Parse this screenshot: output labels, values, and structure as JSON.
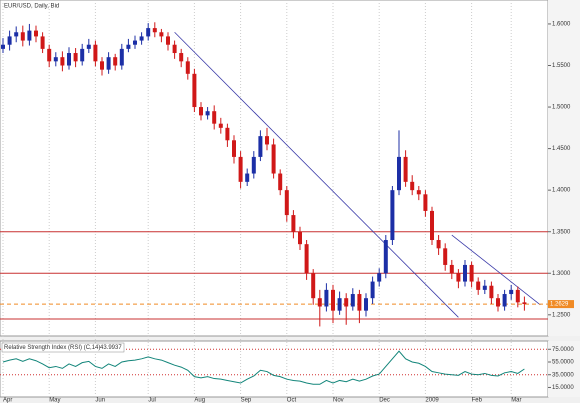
{
  "chart_data": [
    {
      "type": "candlestick",
      "title": "EUR/USD, Daily, Bid",
      "categories": [
        "Apr",
        null,
        null,
        null,
        null,
        null,
        null,
        "May",
        null,
        null,
        null,
        null,
        null,
        null,
        "Jun",
        null,
        null,
        null,
        null,
        null,
        null,
        null,
        "Jul",
        null,
        null,
        null,
        null,
        null,
        null,
        "Aug",
        null,
        null,
        null,
        null,
        null,
        null,
        "Sep",
        null,
        null,
        null,
        null,
        null,
        null,
        "Oct",
        null,
        null,
        null,
        null,
        null,
        null,
        "Nov",
        null,
        null,
        null,
        null,
        null,
        null,
        "Dec",
        null,
        null,
        null,
        null,
        null,
        null,
        "2009",
        null,
        null,
        null,
        null,
        null,
        null,
        "Feb",
        null,
        null,
        null,
        null,
        null,
        "Mar",
        null,
        null
      ],
      "open": [
        1.57,
        1.575,
        1.585,
        1.59,
        1.58,
        1.592,
        1.585,
        1.57,
        1.555,
        1.56,
        1.55,
        1.565,
        1.555,
        1.57,
        1.575,
        1.555,
        1.545,
        1.56,
        1.55,
        1.57,
        1.575,
        1.58,
        1.585,
        1.595,
        1.59,
        1.585,
        1.575,
        1.565,
        1.555,
        1.54,
        1.5,
        1.49,
        1.495,
        1.48,
        1.475,
        1.46,
        1.44,
        1.41,
        1.42,
        1.44,
        1.465,
        1.455,
        1.42,
        1.4,
        1.37,
        1.35,
        1.335,
        1.3,
        1.27,
        1.26,
        1.28,
        1.255,
        1.27,
        1.26,
        1.275,
        1.255,
        1.27,
        1.29,
        1.3,
        1.34,
        1.4,
        1.44,
        1.41,
        1.4,
        1.395,
        1.375,
        1.34,
        1.33,
        1.31,
        1.3,
        1.29,
        1.31,
        1.29,
        1.28,
        1.285,
        1.27,
        1.26,
        1.275,
        1.28,
        1.265
      ],
      "high": [
        1.583,
        1.592,
        1.597,
        1.598,
        1.6,
        1.598,
        1.59,
        1.575,
        1.566,
        1.567,
        1.572,
        1.571,
        1.576,
        1.582,
        1.58,
        1.56,
        1.566,
        1.564,
        1.576,
        1.582,
        1.586,
        1.59,
        1.601,
        1.602,
        1.594,
        1.59,
        1.58,
        1.57,
        1.56,
        1.546,
        1.506,
        1.5,
        1.502,
        1.487,
        1.48,
        1.466,
        1.447,
        1.426,
        1.447,
        1.472,
        1.475,
        1.462,
        1.425,
        1.405,
        1.376,
        1.356,
        1.34,
        1.305,
        1.28,
        1.288,
        1.286,
        1.278,
        1.276,
        1.282,
        1.28,
        1.276,
        1.296,
        1.306,
        1.346,
        1.405,
        1.472,
        1.448,
        1.418,
        1.405,
        1.4,
        1.38,
        1.346,
        1.336,
        1.316,
        1.305,
        1.316,
        1.314,
        1.295,
        1.292,
        1.29,
        1.275,
        1.28,
        1.286,
        1.284,
        1.272
      ],
      "low": [
        1.565,
        1.568,
        1.578,
        1.573,
        1.574,
        1.578,
        1.565,
        1.548,
        1.549,
        1.543,
        1.545,
        1.548,
        1.55,
        1.565,
        1.549,
        1.538,
        1.54,
        1.544,
        1.545,
        1.566,
        1.57,
        1.575,
        1.58,
        1.584,
        1.578,
        1.568,
        1.558,
        1.548,
        1.533,
        1.494,
        1.484,
        1.485,
        1.473,
        1.468,
        1.452,
        1.432,
        1.402,
        1.405,
        1.414,
        1.435,
        1.448,
        1.414,
        1.394,
        1.362,
        1.342,
        1.328,
        1.292,
        1.262,
        1.236,
        1.254,
        1.24,
        1.25,
        1.238,
        1.255,
        1.24,
        1.248,
        1.263,
        1.284,
        1.294,
        1.334,
        1.394,
        1.404,
        1.394,
        1.388,
        1.368,
        1.334,
        1.322,
        1.303,
        1.293,
        1.282,
        1.284,
        1.283,
        1.274,
        1.275,
        1.263,
        1.254,
        1.255,
        1.268,
        1.259,
        1.255
      ],
      "close": [
        1.575,
        1.585,
        1.59,
        1.58,
        1.592,
        1.585,
        1.57,
        1.555,
        1.56,
        1.55,
        1.565,
        1.555,
        1.57,
        1.575,
        1.555,
        1.545,
        1.56,
        1.55,
        1.57,
        1.575,
        1.58,
        1.585,
        1.595,
        1.59,
        1.585,
        1.575,
        1.565,
        1.555,
        1.54,
        1.5,
        1.49,
        1.495,
        1.48,
        1.475,
        1.46,
        1.44,
        1.41,
        1.42,
        1.44,
        1.465,
        1.455,
        1.42,
        1.4,
        1.37,
        1.35,
        1.335,
        1.3,
        1.27,
        1.26,
        1.28,
        1.255,
        1.27,
        1.26,
        1.275,
        1.255,
        1.27,
        1.29,
        1.3,
        1.34,
        1.4,
        1.44,
        1.41,
        1.4,
        1.395,
        1.375,
        1.34,
        1.33,
        1.31,
        1.3,
        1.29,
        1.31,
        1.29,
        1.28,
        1.285,
        1.27,
        1.26,
        1.275,
        1.28,
        1.265,
        1.263
      ],
      "up_color": "#1c2fa6",
      "down_color": "#d01818",
      "ylim": [
        1.2245,
        1.624
      ],
      "yticks": [
        {
          "value": 1.25,
          "label": "1.2500"
        },
        {
          "value": 1.3,
          "label": "1.3000"
        },
        {
          "value": 1.35,
          "label": "1.3500"
        },
        {
          "value": 1.4,
          "label": "1.4000"
        },
        {
          "value": 1.45,
          "label": "1.4500"
        },
        {
          "value": 1.5,
          "label": "1.5000"
        },
        {
          "value": 1.55,
          "label": "1.5500"
        },
        {
          "value": 1.6,
          "label": "1.6000"
        }
      ],
      "levels": [
        1.35,
        1.3,
        1.245
      ],
      "level_color": "#c83030",
      "last_price": 1.2629,
      "last_price_color": "#f08a24",
      "trendlines": [
        {
          "x": [
            26,
            69
          ],
          "y": [
            1.59,
            1.247
          ]
        },
        {
          "x": [
            68,
            81.4
          ],
          "y": [
            1.346,
            1.262
          ]
        }
      ],
      "trendline_color": "#3a3aa8",
      "grid": true
    },
    {
      "type": "line",
      "title": "Relative Strength Index (RSI) (C,14)",
      "values": [
        55,
        58,
        60,
        56,
        60,
        57,
        52,
        46,
        48,
        45,
        52,
        48,
        54,
        56,
        48,
        45,
        52,
        48,
        55,
        57,
        58,
        60,
        63,
        60,
        58,
        54,
        50,
        47,
        42,
        32,
        30,
        32,
        29,
        28,
        26,
        24,
        22,
        28,
        33,
        42,
        40,
        34,
        32,
        28,
        26,
        25,
        22,
        20,
        20,
        26,
        22,
        26,
        24,
        28,
        25,
        28,
        33,
        36,
        48,
        60,
        72,
        60,
        55,
        53,
        48,
        40,
        38,
        36,
        35,
        34,
        40,
        36,
        35,
        37,
        34,
        33,
        38,
        40,
        37,
        43.9937
      ],
      "value_labels": [
        null,
        null,
        null,
        null,
        null,
        null,
        null,
        null,
        null,
        null,
        null,
        null,
        null,
        null,
        null,
        null,
        null,
        null,
        null,
        null,
        null,
        null,
        null,
        null,
        null,
        null,
        null,
        null,
        null,
        null,
        null,
        null,
        null,
        null,
        null,
        null,
        null,
        null,
        null,
        null,
        null,
        null,
        null,
        null,
        null,
        null,
        null,
        null,
        null,
        null,
        null,
        null,
        null,
        null,
        null,
        null,
        null,
        null,
        null,
        null,
        null,
        null,
        null,
        null,
        null,
        null,
        null,
        null,
        null,
        null,
        null,
        null,
        null,
        null,
        null,
        null,
        null,
        null,
        null,
        "43.9937"
      ],
      "color": "#12857a",
      "ylim": [
        0,
        88
      ],
      "yticks": [
        {
          "value": 75,
          "label": "75.0000"
        },
        {
          "value": 55,
          "label": "55.0000"
        },
        {
          "value": 35,
          "label": "35.0000"
        },
        {
          "value": 15,
          "label": "15.0000"
        }
      ],
      "levels": [
        75,
        35
      ],
      "level_color": "#d03030"
    }
  ]
}
